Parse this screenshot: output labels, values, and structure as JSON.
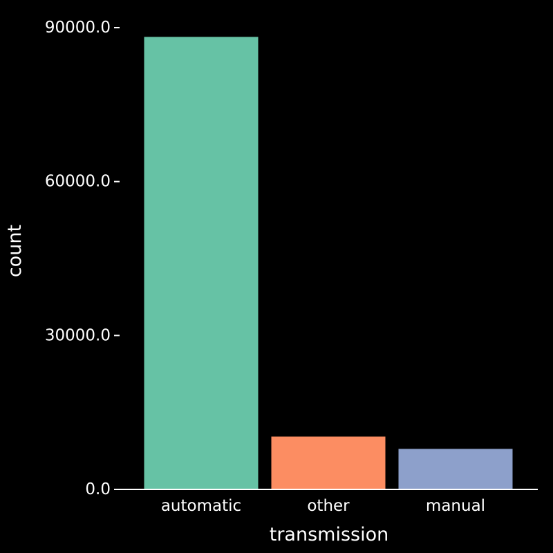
{
  "chart_data": {
    "type": "bar",
    "xlabel": "transmission",
    "ylabel": "count",
    "categories": [
      "automatic",
      "other",
      "manual"
    ],
    "values": [
      88200,
      10300,
      7900
    ],
    "colors": [
      "#66c2a5",
      "#fc8d62",
      "#8da0cb"
    ],
    "yticks": [
      0,
      30000,
      60000,
      90000
    ],
    "ytick_labels": [
      "0.0",
      "30000.0",
      "60000.0",
      "90000.0"
    ],
    "ylim": [
      0,
      90000
    ],
    "grid": false,
    "background": "#000000",
    "axis_color": "#ffffff"
  }
}
